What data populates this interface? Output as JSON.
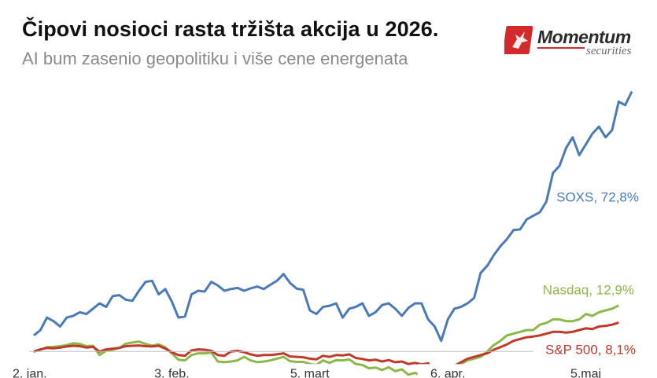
{
  "header": {
    "title": "Čipovi nosioci rasta tržišta akcija u 2026.",
    "subtitle": "AI bum zasenio geopolitiku i više cene energenata"
  },
  "logo": {
    "word": "Momentum",
    "sub": "securities",
    "color": "#d12b2b"
  },
  "chart_data": {
    "type": "line",
    "title": "Čipovi nosioci rasta tržišta akcija u 2026.",
    "subtitle": "AI bum zasenio geopolitiku i više cene energenata",
    "xlabel": "",
    "ylabel": "",
    "x_tick_labels": [
      "2. jan.",
      "3. feb.",
      "5. mart",
      "6. apr.",
      "5.maj"
    ],
    "x_tick_index": [
      0,
      21,
      42,
      63,
      84
    ],
    "ylim": [
      -5,
      76
    ],
    "baseline": 0,
    "grid": false,
    "legend": "inline end labels",
    "series": [
      {
        "name": "SOXS",
        "end_label": "SOXS, 72,8%",
        "color": "#4a7ab8",
        "values": [
          4.5,
          6,
          9.5,
          8.5,
          7,
          9.5,
          10,
          11,
          10.5,
          12,
          13.5,
          12.5,
          15.5,
          15.8,
          14.5,
          14.2,
          17,
          19.5,
          19.8,
          16,
          17.5,
          14,
          9.5,
          9.8,
          16,
          17,
          16.8,
          19.5,
          18.5,
          17,
          17.5,
          17.8,
          17,
          17.7,
          18.2,
          17.5,
          18.7,
          19.8,
          21.7,
          19.2,
          17.6,
          17.3,
          11.5,
          10.5,
          12.5,
          12.8,
          13.5,
          9.5,
          12,
          12.5,
          13.5,
          10,
          11,
          13,
          13.5,
          12,
          10,
          12.2,
          13.5,
          13.5,
          9,
          7,
          3,
          9,
          12,
          12.5,
          13.5,
          15,
          22,
          24,
          27,
          29.5,
          31.5,
          34,
          34.2,
          37,
          38,
          39,
          42,
          50,
          52,
          57,
          60,
          55,
          58,
          61,
          63,
          60,
          62,
          70,
          69,
          72.8
        ]
      },
      {
        "name": "Nasdaq",
        "end_label": "Nasdaq, 12,9%",
        "color": "#8cb84b",
        "values": [
          0,
          0.5,
          1.2,
          1.3,
          1.5,
          1.8,
          2.3,
          2.1,
          1.5,
          1.6,
          -1,
          0.2,
          0.5,
          1,
          2.2,
          2.5,
          2.8,
          2.1,
          1.6,
          2,
          1.2,
          -0.5,
          -2.3,
          -2.5,
          -1,
          -0.5,
          -0.5,
          -0.3,
          -2.8,
          -3,
          -2.8,
          -2.5,
          -1.5,
          -2.5,
          -3,
          -2.8,
          -2.5,
          -2,
          -1.5,
          -2.7,
          -2.9,
          -2.9,
          -3.5,
          -3.8,
          -2.5,
          -3.2,
          -2.4,
          -2.5,
          -2.2,
          -3.5,
          -3.8,
          -4.7,
          -4.5,
          -5.2,
          -4.4,
          -5.5,
          -5,
          -6.5,
          -6,
          -6.8,
          -6.3,
          -9,
          -10,
          -5,
          -4,
          -3.5,
          -2.5,
          -2,
          -1.5,
          0,
          1.8,
          3,
          4.5,
          5,
          5.5,
          6,
          6,
          7.5,
          8,
          9,
          9,
          8.5,
          8.5,
          9,
          10.5,
          10,
          11,
          11.5,
          12,
          12.9
        ]
      },
      {
        "name": "S&P 500",
        "end_label": "S&P 500, 8,1%",
        "color": "#c0392b",
        "values": [
          0,
          0.6,
          1,
          0.9,
          1.1,
          1.4,
          1.6,
          1.5,
          1.1,
          1.3,
          0,
          0.6,
          0.8,
          1,
          1.5,
          1.6,
          1.7,
          1.5,
          1.4,
          1.6,
          0.8,
          -0.2,
          -1,
          -1.2,
          0.3,
          0.6,
          0.5,
          0.2,
          -1,
          -1.2,
          0,
          0.2,
          -0.2,
          -0.8,
          -1.2,
          -1,
          -1,
          -0.8,
          -0.5,
          -1.4,
          -1.5,
          -1.6,
          -2,
          -2.2,
          -1.2,
          -1.5,
          -1,
          -1.1,
          -0.8,
          -1.8,
          -2.1,
          -2.5,
          -2.3,
          -2.8,
          -2.4,
          -3,
          -2.8,
          -3.5,
          -3.2,
          -3.6,
          -3.3,
          -5.5,
          -7,
          -5,
          -4,
          -3,
          -2,
          -1.5,
          -1,
          -0.5,
          0.5,
          1.2,
          2,
          3,
          3.5,
          4,
          4.2,
          4.5,
          5,
          5.5,
          5.5,
          5.3,
          5.5,
          6,
          6.5,
          6.3,
          7,
          7.2,
          7.5,
          8.1
        ]
      }
    ]
  }
}
